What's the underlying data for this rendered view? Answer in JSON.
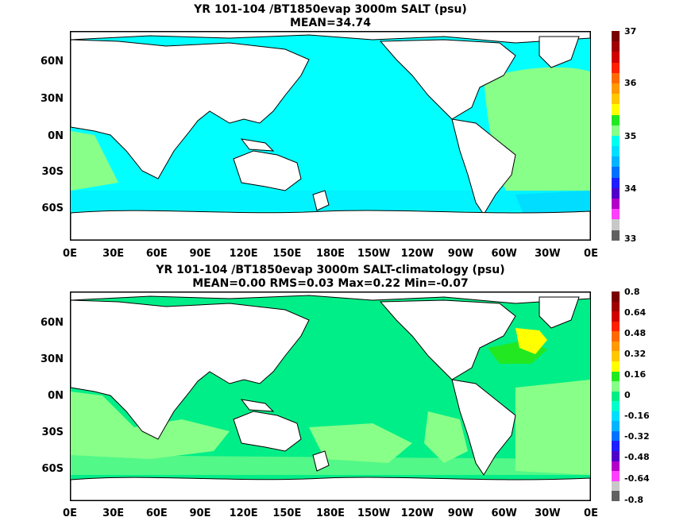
{
  "panels": [
    {
      "title_line1": "YR 101-104 /BT1850evap 3000m SALT (psu)",
      "title_line2": "MEAN=34.74",
      "lat_labels": [
        "60N",
        "30N",
        "0N",
        "30S",
        "60S"
      ],
      "lon_labels": [
        "0E",
        "30E",
        "60E",
        "90E",
        "120E",
        "150E",
        "180E",
        "150W",
        "120W",
        "90W",
        "60W",
        "30W",
        "0E"
      ],
      "colorbar_labels": [
        "37",
        "36",
        "35",
        "34",
        "33"
      ],
      "colorbar_colors": [
        "#7a0000",
        "#a00000",
        "#d00000",
        "#ff2000",
        "#ff6a00",
        "#ff9a00",
        "#ffc800",
        "#ffff00",
        "#22e822",
        "#88ff88",
        "#00ffee",
        "#00dfff",
        "#00b4ff",
        "#0070ff",
        "#1e1eff",
        "#5000c8",
        "#b400c8",
        "#ff40ff",
        "#c8c8c8",
        "#606060"
      ],
      "ocean_colors": {
        "base": "#00ffff",
        "high": "#88ff88",
        "low": "#00ddff"
      }
    },
    {
      "title_line1": "YR 101-104 /BT1850evap 3000m SALT-climatology (psu)",
      "title_line2": "MEAN=0.00   RMS=0.03   Max=0.22   Min=-0.07",
      "lat_labels": [
        "60N",
        "30N",
        "0N",
        "30S",
        "60S"
      ],
      "lon_labels": [
        "0E",
        "30E",
        "60E",
        "90E",
        "120E",
        "150E",
        "180E",
        "150W",
        "120W",
        "90W",
        "60W",
        "30W",
        "0E"
      ],
      "colorbar_labels": [
        "0.8",
        "0.64",
        "0.48",
        "0.32",
        "0.16",
        "0",
        "-0.16",
        "-0.32",
        "-0.48",
        "-0.64",
        "-0.8"
      ],
      "colorbar_colors": [
        "#7a0000",
        "#a00000",
        "#d00000",
        "#ff2000",
        "#ff6a00",
        "#ff9a00",
        "#ffc800",
        "#ffff00",
        "#22e822",
        "#88ff88",
        "#00ee88",
        "#00ffcc",
        "#00dfff",
        "#00b4ff",
        "#0070ff",
        "#1e1eff",
        "#5000c8",
        "#b400c8",
        "#ff40ff",
        "#c8c8c8",
        "#606060"
      ],
      "ocean_colors": {
        "base": "#00ee88",
        "high": "#88ff88",
        "low": "#00ddcc",
        "max": "#ffff00"
      }
    }
  ]
}
